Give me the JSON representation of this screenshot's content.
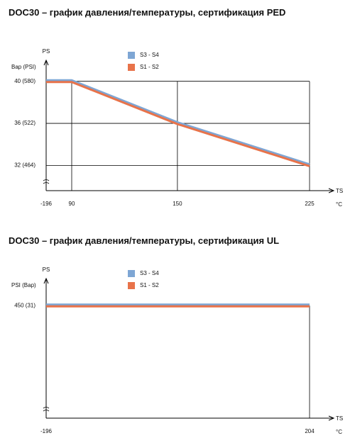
{
  "chart_data": [
    {
      "type": "line",
      "title": "DOC30 – график давления/температуры, сертификация PED",
      "ylabel": "PS",
      "y_unit_label": "Bap (PSI)",
      "xlabel": "TS",
      "x_unit_label": "°C",
      "x": [
        -196,
        90,
        150,
        225
      ],
      "series": [
        {
          "name": "S3 - S4",
          "color": "#7ea6d4",
          "values": [
            40,
            40,
            36,
            32
          ]
        },
        {
          "name": "S1 - S2",
          "color": "#e8734a",
          "values": [
            40,
            40,
            36,
            32
          ]
        }
      ],
      "xlim": [
        -196,
        225
      ],
      "xticks": [
        -196,
        90,
        150,
        225
      ],
      "ylim": [
        29.6,
        41.8
      ],
      "yticks": [
        {
          "value": 40,
          "label": "40  (580)"
        },
        {
          "value": 36,
          "label": "36  (522)"
        },
        {
          "value": 32,
          "label": "32  (464)"
        }
      ],
      "grid": true
    },
    {
      "type": "line",
      "title": "DOC30 – график давления/температуры, сертификация UL",
      "ylabel": "PS",
      "y_unit_label": "PSI  (Bap)",
      "xlabel": "TS",
      "x_unit_label": "°C",
      "x": [
        -196,
        204
      ],
      "series": [
        {
          "name": "S3 - S4",
          "color": "#7ea6d4",
          "values": [
            450,
            450
          ]
        },
        {
          "name": "S1 - S2",
          "color": "#e8734a",
          "values": [
            450,
            450
          ]
        }
      ],
      "xlim": [
        -196,
        204
      ],
      "xticks": [
        -196,
        204
      ],
      "ylim": [
        396,
        462
      ],
      "yticks": [
        {
          "value": 450,
          "label": "450 (31)"
        }
      ],
      "grid": true
    }
  ]
}
